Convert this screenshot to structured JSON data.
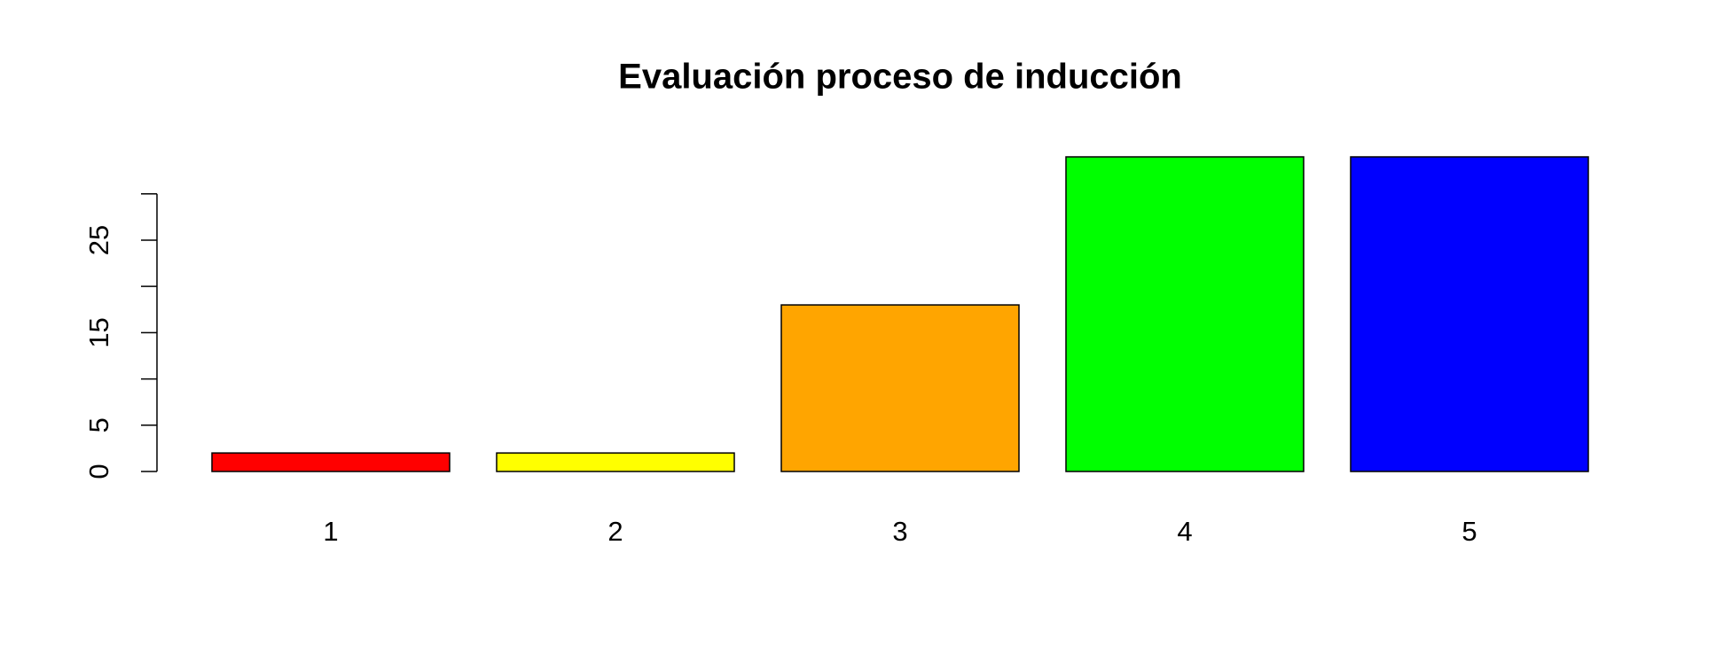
{
  "chart_data": {
    "type": "bar",
    "title": "Evaluación proceso de inducción",
    "categories": [
      "1",
      "2",
      "3",
      "4",
      "5"
    ],
    "values": [
      2,
      2,
      18,
      34,
      34
    ],
    "colors": [
      "#ff0000",
      "#ffff00",
      "#ffa500",
      "#00ff00",
      "#0000ff"
    ],
    "ylim": [
      0,
      34
    ],
    "yticks": [
      0,
      5,
      15,
      25
    ],
    "yminorticks": [
      10,
      20,
      30
    ],
    "grid": false
  }
}
